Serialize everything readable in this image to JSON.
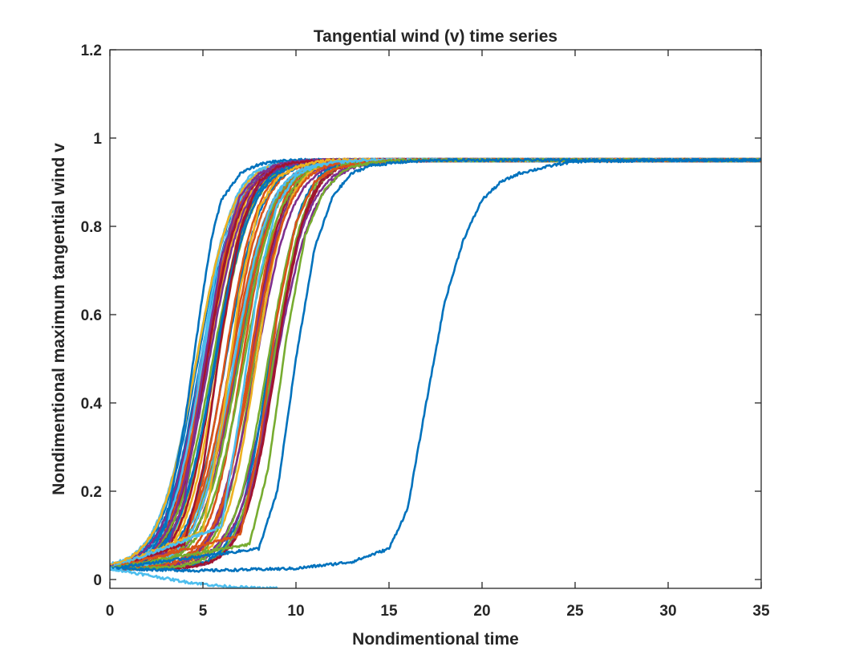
{
  "chart_data": {
    "type": "line",
    "title": "Tangential wind (v) time series",
    "xlabel": "Nondimentional time",
    "ylabel": "Nondimentional maximum tangential wind v",
    "xlim": [
      0,
      35
    ],
    "ylim": [
      -0.02,
      1.2
    ],
    "xticks": [
      0,
      5,
      10,
      15,
      20,
      25,
      30,
      35
    ],
    "yticks": [
      0,
      0.2,
      0.4,
      0.6,
      0.8,
      1,
      1.2
    ],
    "xtick_labels": [
      "0",
      "5",
      "10",
      "15",
      "20",
      "25",
      "30",
      "35"
    ],
    "ytick_labels": [
      "0",
      "0.2",
      "0.4",
      "0.6",
      "0.8",
      "1",
      "1.2"
    ],
    "grid": false,
    "legend": "none",
    "colors": [
      "#0072bd",
      "#d95319",
      "#edb120",
      "#7e2f8e",
      "#77ac30",
      "#4dbeee",
      "#a2142f"
    ],
    "series_summary": "ensemble of ~60 sigmoid-shaped runs rising from ~0.025 to ~0.95; most midpoints between t=4.5 and t=9, a few later (t≈11-12) and one at t≈17.5",
    "series": [
      {
        "x": [
          0,
          2,
          3,
          4,
          4.5,
          5,
          5.5,
          6,
          7,
          8,
          9,
          10,
          12,
          15,
          20,
          25,
          30,
          35
        ],
        "y": [
          0.025,
          0.05,
          0.12,
          0.35,
          0.5,
          0.65,
          0.78,
          0.86,
          0.92,
          0.94,
          0.948,
          0.95,
          0.95,
          0.95,
          0.95,
          0.95,
          0.95,
          0.95
        ]
      },
      {
        "x": [
          0,
          3,
          4,
          5,
          6,
          7,
          8,
          9,
          10,
          12,
          15,
          20,
          25,
          30,
          35
        ],
        "y": [
          0.025,
          0.06,
          0.18,
          0.47,
          0.73,
          0.87,
          0.92,
          0.94,
          0.948,
          0.95,
          0.95,
          0.95,
          0.95,
          0.95,
          0.95
        ]
      },
      {
        "x": [
          0,
          4,
          5,
          6,
          7,
          8,
          9,
          10,
          12,
          15,
          20,
          25,
          30,
          35
        ],
        "y": [
          0.025,
          0.08,
          0.25,
          0.55,
          0.79,
          0.9,
          0.935,
          0.945,
          0.95,
          0.95,
          0.95,
          0.95,
          0.95,
          0.95
        ]
      },
      {
        "x": [
          0,
          5,
          6,
          7,
          8,
          9,
          10,
          11,
          12,
          15,
          20,
          25,
          30,
          35
        ],
        "y": [
          0.025,
          0.11,
          0.35,
          0.66,
          0.84,
          0.91,
          0.935,
          0.945,
          0.95,
          0.95,
          0.95,
          0.95,
          0.95,
          0.95
        ]
      },
      {
        "x": [
          0,
          6,
          7,
          8,
          9,
          10,
          11,
          12,
          14,
          16,
          20,
          25,
          30,
          35
        ],
        "y": [
          0.025,
          0.12,
          0.38,
          0.68,
          0.85,
          0.915,
          0.935,
          0.945,
          0.95,
          0.95,
          0.95,
          0.95,
          0.95,
          0.95
        ]
      },
      {
        "x": [
          0,
          7,
          8,
          9,
          10,
          11,
          12,
          13,
          15,
          17,
          20,
          25,
          30,
          35
        ],
        "y": [
          0.025,
          0.1,
          0.3,
          0.6,
          0.81,
          0.9,
          0.93,
          0.94,
          0.948,
          0.95,
          0.95,
          0.95,
          0.95,
          0.95
        ]
      },
      {
        "x": [
          0,
          7.5,
          8.5,
          9.5,
          10.5,
          11.5,
          12.5,
          13.5,
          15,
          17,
          20,
          25,
          30,
          35
        ],
        "y": [
          0.025,
          0.08,
          0.25,
          0.55,
          0.78,
          0.88,
          0.925,
          0.94,
          0.948,
          0.95,
          0.95,
          0.95,
          0.95,
          0.95
        ]
      },
      {
        "x": [
          0,
          8,
          9,
          10,
          11,
          12,
          13,
          14,
          16,
          18,
          20,
          25,
          30,
          35
        ],
        "y": [
          0.025,
          0.07,
          0.2,
          0.5,
          0.75,
          0.87,
          0.92,
          0.938,
          0.947,
          0.95,
          0.95,
          0.95,
          0.95,
          0.95
        ]
      },
      {
        "x": [
          0,
          5,
          10,
          13,
          15,
          16,
          17,
          18,
          19,
          20,
          21,
          22,
          24,
          25,
          30,
          35
        ],
        "y": [
          0.025,
          0.02,
          0.025,
          0.04,
          0.07,
          0.16,
          0.4,
          0.63,
          0.77,
          0.86,
          0.9,
          0.92,
          0.94,
          0.947,
          0.95,
          0.95
        ]
      },
      {
        "x": [
          0,
          2,
          4,
          6,
          8,
          9
        ],
        "y": [
          0.025,
          0.01,
          -0.005,
          -0.015,
          -0.02,
          -0.02
        ]
      }
    ]
  }
}
